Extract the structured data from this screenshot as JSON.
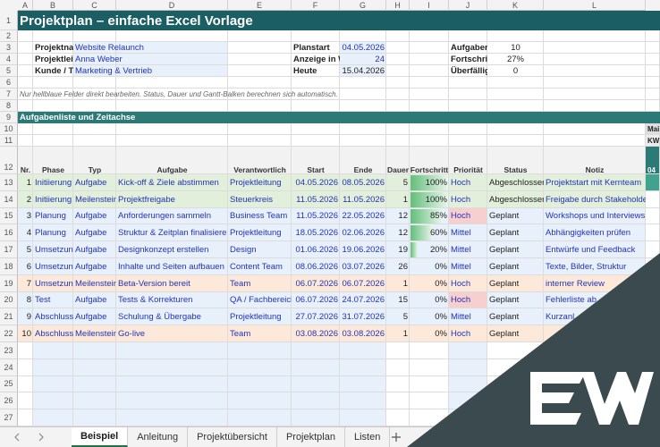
{
  "column_letters": [
    "A",
    "B",
    "C",
    "D",
    "E",
    "F",
    "G",
    "H",
    "I",
    "J",
    "K",
    "L"
  ],
  "row_numbers": [
    "1",
    "2",
    "3",
    "4",
    "5",
    "6",
    "7",
    "8",
    "9",
    "10",
    "11",
    "12",
    "13",
    "14",
    "15",
    "16",
    "17",
    "18",
    "19",
    "20",
    "21",
    "22",
    "23",
    "24",
    "25",
    "26",
    "27"
  ],
  "title": "Projektplan – einfache Excel Vorlage",
  "project_info": {
    "labels": [
      "Projektname",
      "Projektleitung",
      "Kunde / Team"
    ],
    "values": [
      "Website Relaunch",
      "Anna Weber",
      "Marketing & Vertrieb"
    ]
  },
  "schedule_info": {
    "labels": [
      "Planstart",
      "Anzeige in W",
      "Heute"
    ],
    "values": [
      "04.05.2026",
      "24",
      "15.04.2026"
    ]
  },
  "summary": {
    "labels": [
      "Aufgaben",
      "Fortschritt",
      "Überfällig"
    ],
    "values": [
      "10",
      "27%",
      "0"
    ]
  },
  "note": "Nur hellblaue Felder direkt bearbeiten. Status, Dauer und Gantt-Balken berechnen sich automatisch.",
  "section_title": "Aufgabenliste und Zeitachse",
  "timeline": {
    "month": "Mai",
    "week_label": "KW",
    "day": "04"
  },
  "table": {
    "headers": [
      "Nr.",
      "Phase",
      "Typ",
      "Aufgabe",
      "Verantwortlich",
      "Start",
      "Ende",
      "Dauer",
      "Fortschritt",
      "Priorität",
      "Status",
      "Notiz"
    ],
    "progress_color": "#63be7b",
    "tasks": [
      {
        "cells": [
          "1",
          "Initiierung",
          "Aufgabe",
          "Kick-off & Ziele abstimmen",
          "Projektleitung",
          "04.05.2026",
          "08.05.2026",
          "5",
          "100%",
          "Hoch",
          "Abgeschlossen",
          "Projektstart mit Kernteam"
        ],
        "progress": 100,
        "fill": "#e2efda"
      },
      {
        "cells": [
          "2",
          "Initiierung",
          "Meilenstein",
          "Projektfreigabe",
          "Steuerkreis",
          "11.05.2026",
          "11.05.2026",
          "1",
          "100%",
          "Hoch",
          "Abgeschlossen",
          "Freigabe durch Stakeholder"
        ],
        "progress": 100,
        "fill": "#e2efda"
      },
      {
        "cells": [
          "3",
          "Planung",
          "Aufgabe",
          "Anforderungen sammeln",
          "Business Team",
          "11.05.2026",
          "22.05.2026",
          "12",
          "85%",
          "Hoch",
          "Geplant",
          "Workshops und Interviews"
        ],
        "progress": 85,
        "fill": "#e8f0fb",
        "priority_fill": "#f8cfcf"
      },
      {
        "cells": [
          "4",
          "Planung",
          "Aufgabe",
          "Struktur & Zeitplan finalisiere",
          "Projektleitung",
          "18.05.2026",
          "02.06.2026",
          "12",
          "60%",
          "Mittel",
          "Geplant",
          "Abhängigkeiten prüfen"
        ],
        "progress": 60,
        "fill": "#e8f0fb"
      },
      {
        "cells": [
          "5",
          "Umsetzung",
          "Aufgabe",
          "Designkonzept erstellen",
          "Design",
          "01.06.2026",
          "19.06.2026",
          "19",
          "20%",
          "Mittel",
          "Geplant",
          "Entwürfe und Feedback"
        ],
        "progress": 20,
        "fill": "#e8f0fb"
      },
      {
        "cells": [
          "6",
          "Umsetzung",
          "Aufgabe",
          "Inhalte und Seiten aufbauen",
          "Content Team",
          "08.06.2026",
          "03.07.2026",
          "26",
          "0%",
          "Mittel",
          "Geplant",
          "Texte, Bilder, Struktur"
        ],
        "progress": 0,
        "fill": "#e8f0fb"
      },
      {
        "cells": [
          "7",
          "Umsetzung",
          "Meilenstein",
          "Beta-Version bereit",
          "Team",
          "06.07.2026",
          "06.07.2026",
          "1",
          "0%",
          "Hoch",
          "Geplant",
          "interner Review"
        ],
        "progress": 0,
        "fill": "#fde9d9"
      },
      {
        "cells": [
          "8",
          "Test",
          "Aufgabe",
          "Tests & Korrekturen",
          "QA / Fachbereich",
          "06.07.2026",
          "24.07.2026",
          "15",
          "0%",
          "Hoch",
          "Geplant",
          "Fehlerliste ab"
        ],
        "progress": 0,
        "fill": "#e8f0fb",
        "priority_fill": "#f8cfcf"
      },
      {
        "cells": [
          "9",
          "Abschluss",
          "Aufgabe",
          "Schulung & Übergabe",
          "Projektleitung",
          "27.07.2026",
          "31.07.2026",
          "5",
          "0%",
          "Mittel",
          "Geplant",
          "Kurzanl"
        ],
        "progress": 0,
        "fill": "#e8f0fb"
      },
      {
        "cells": [
          "10",
          "Abschluss",
          "Meilenstein",
          "Go-live",
          "Team",
          "03.08.2026",
          "03.08.2026",
          "1",
          "0%",
          "Hoch",
          "Geplant"
        ],
        "progress": 0,
        "fill": "#fde9d9"
      }
    ]
  },
  "tabs": [
    "Beispiel",
    "Anleitung",
    "Projektübersicht",
    "Projektplan",
    "Listen"
  ]
}
